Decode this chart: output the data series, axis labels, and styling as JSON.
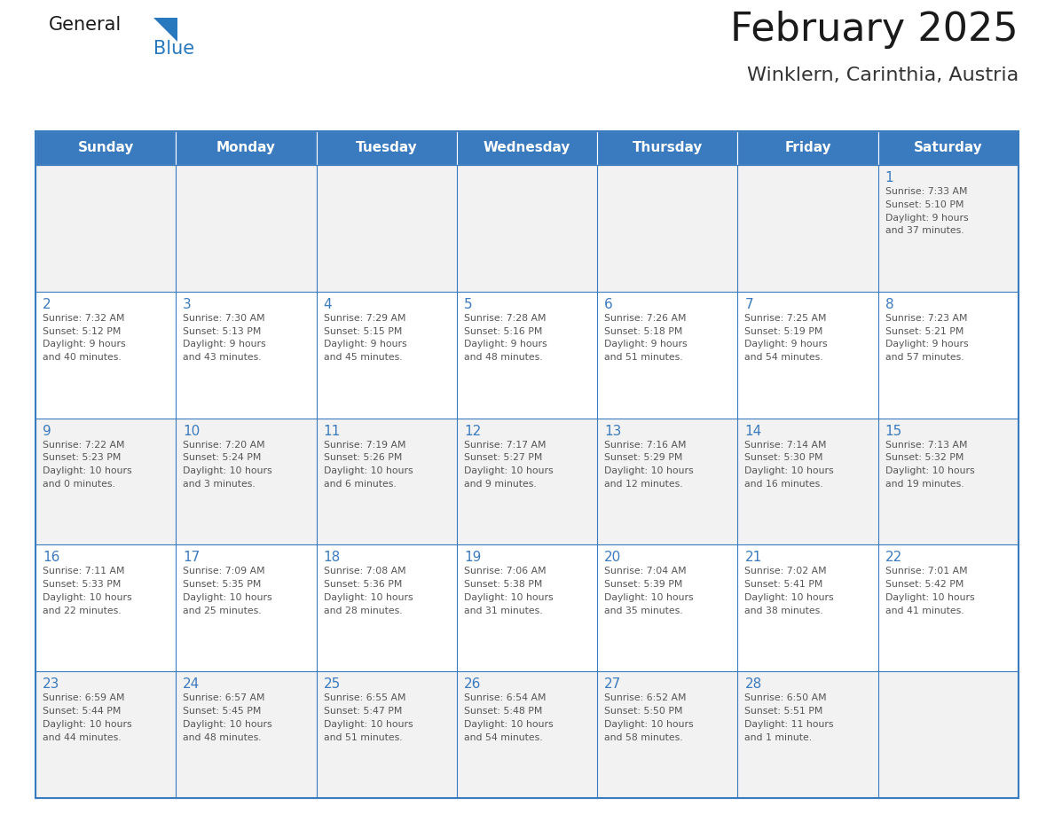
{
  "title": "February 2025",
  "subtitle": "Winklern, Carinthia, Austria",
  "days_of_week": [
    "Sunday",
    "Monday",
    "Tuesday",
    "Wednesday",
    "Thursday",
    "Friday",
    "Saturday"
  ],
  "header_bg": "#3a7abf",
  "header_text": "#ffffff",
  "cell_bg_light": "#f2f2f2",
  "cell_bg_white": "#ffffff",
  "cell_border": "#3a7abf",
  "day_num_color": "#3a7abf",
  "info_text_color": "#555555",
  "title_color": "#1a1a1a",
  "subtitle_color": "#333333",
  "logo_general_color": "#1a1a1a",
  "logo_blue_color": "#2878be",
  "fig_width": 11.88,
  "fig_height": 9.18,
  "dpi": 100,
  "weeks": [
    [
      {
        "day": null,
        "info": ""
      },
      {
        "day": null,
        "info": ""
      },
      {
        "day": null,
        "info": ""
      },
      {
        "day": null,
        "info": ""
      },
      {
        "day": null,
        "info": ""
      },
      {
        "day": null,
        "info": ""
      },
      {
        "day": 1,
        "info": "Sunrise: 7:33 AM\nSunset: 5:10 PM\nDaylight: 9 hours\nand 37 minutes."
      }
    ],
    [
      {
        "day": 2,
        "info": "Sunrise: 7:32 AM\nSunset: 5:12 PM\nDaylight: 9 hours\nand 40 minutes."
      },
      {
        "day": 3,
        "info": "Sunrise: 7:30 AM\nSunset: 5:13 PM\nDaylight: 9 hours\nand 43 minutes."
      },
      {
        "day": 4,
        "info": "Sunrise: 7:29 AM\nSunset: 5:15 PM\nDaylight: 9 hours\nand 45 minutes."
      },
      {
        "day": 5,
        "info": "Sunrise: 7:28 AM\nSunset: 5:16 PM\nDaylight: 9 hours\nand 48 minutes."
      },
      {
        "day": 6,
        "info": "Sunrise: 7:26 AM\nSunset: 5:18 PM\nDaylight: 9 hours\nand 51 minutes."
      },
      {
        "day": 7,
        "info": "Sunrise: 7:25 AM\nSunset: 5:19 PM\nDaylight: 9 hours\nand 54 minutes."
      },
      {
        "day": 8,
        "info": "Sunrise: 7:23 AM\nSunset: 5:21 PM\nDaylight: 9 hours\nand 57 minutes."
      }
    ],
    [
      {
        "day": 9,
        "info": "Sunrise: 7:22 AM\nSunset: 5:23 PM\nDaylight: 10 hours\nand 0 minutes."
      },
      {
        "day": 10,
        "info": "Sunrise: 7:20 AM\nSunset: 5:24 PM\nDaylight: 10 hours\nand 3 minutes."
      },
      {
        "day": 11,
        "info": "Sunrise: 7:19 AM\nSunset: 5:26 PM\nDaylight: 10 hours\nand 6 minutes."
      },
      {
        "day": 12,
        "info": "Sunrise: 7:17 AM\nSunset: 5:27 PM\nDaylight: 10 hours\nand 9 minutes."
      },
      {
        "day": 13,
        "info": "Sunrise: 7:16 AM\nSunset: 5:29 PM\nDaylight: 10 hours\nand 12 minutes."
      },
      {
        "day": 14,
        "info": "Sunrise: 7:14 AM\nSunset: 5:30 PM\nDaylight: 10 hours\nand 16 minutes."
      },
      {
        "day": 15,
        "info": "Sunrise: 7:13 AM\nSunset: 5:32 PM\nDaylight: 10 hours\nand 19 minutes."
      }
    ],
    [
      {
        "day": 16,
        "info": "Sunrise: 7:11 AM\nSunset: 5:33 PM\nDaylight: 10 hours\nand 22 minutes."
      },
      {
        "day": 17,
        "info": "Sunrise: 7:09 AM\nSunset: 5:35 PM\nDaylight: 10 hours\nand 25 minutes."
      },
      {
        "day": 18,
        "info": "Sunrise: 7:08 AM\nSunset: 5:36 PM\nDaylight: 10 hours\nand 28 minutes."
      },
      {
        "day": 19,
        "info": "Sunrise: 7:06 AM\nSunset: 5:38 PM\nDaylight: 10 hours\nand 31 minutes."
      },
      {
        "day": 20,
        "info": "Sunrise: 7:04 AM\nSunset: 5:39 PM\nDaylight: 10 hours\nand 35 minutes."
      },
      {
        "day": 21,
        "info": "Sunrise: 7:02 AM\nSunset: 5:41 PM\nDaylight: 10 hours\nand 38 minutes."
      },
      {
        "day": 22,
        "info": "Sunrise: 7:01 AM\nSunset: 5:42 PM\nDaylight: 10 hours\nand 41 minutes."
      }
    ],
    [
      {
        "day": 23,
        "info": "Sunrise: 6:59 AM\nSunset: 5:44 PM\nDaylight: 10 hours\nand 44 minutes."
      },
      {
        "day": 24,
        "info": "Sunrise: 6:57 AM\nSunset: 5:45 PM\nDaylight: 10 hours\nand 48 minutes."
      },
      {
        "day": 25,
        "info": "Sunrise: 6:55 AM\nSunset: 5:47 PM\nDaylight: 10 hours\nand 51 minutes."
      },
      {
        "day": 26,
        "info": "Sunrise: 6:54 AM\nSunset: 5:48 PM\nDaylight: 10 hours\nand 54 minutes."
      },
      {
        "day": 27,
        "info": "Sunrise: 6:52 AM\nSunset: 5:50 PM\nDaylight: 10 hours\nand 58 minutes."
      },
      {
        "day": 28,
        "info": "Sunrise: 6:50 AM\nSunset: 5:51 PM\nDaylight: 11 hours\nand 1 minute."
      },
      {
        "day": null,
        "info": ""
      }
    ]
  ]
}
